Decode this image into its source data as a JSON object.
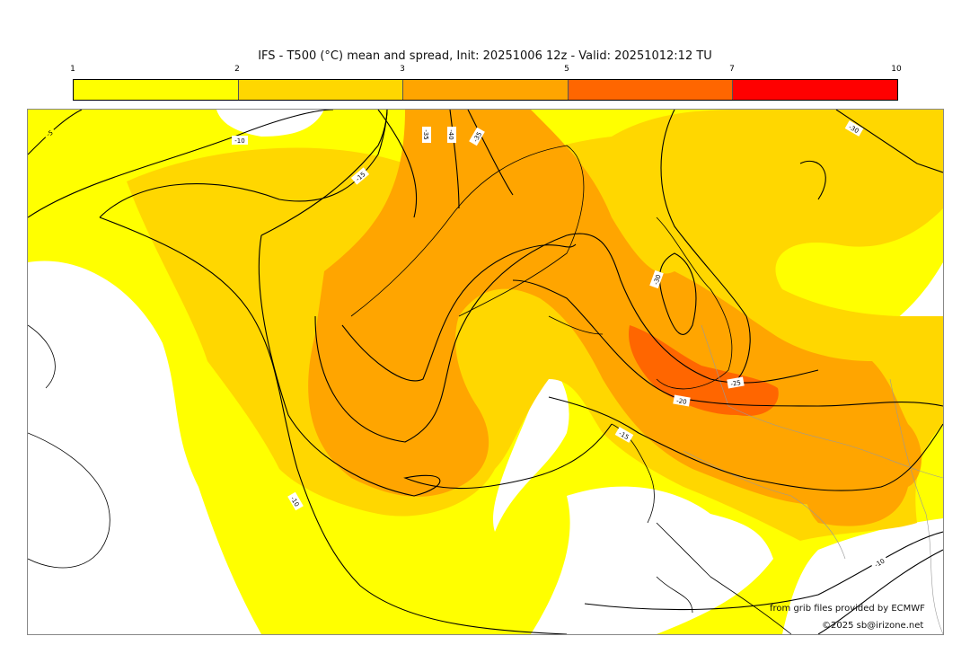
{
  "title": "IFS - T500 (°C) mean and spread, Init: 20251006 12z - Valid: 20251012:12 TU",
  "colorbar": {
    "ticks": [
      "1",
      "2",
      "3",
      "5",
      "7",
      "10"
    ],
    "colors": [
      "#ffff00",
      "#ffd700",
      "#ffa500",
      "#ff6600",
      "#ff0000"
    ]
  },
  "contour_labels": {
    "l1": "-10",
    "l2": "-15",
    "l3": "-35",
    "l4": "-40",
    "l5": "-35",
    "l6": "-30",
    "l7": "-25",
    "l8": "-20",
    "l9": "-15",
    "l10": "-10",
    "l11": "-30",
    "l12": "-10",
    "l13": "-5"
  },
  "credits": {
    "source": "from grib files provided by ECMWF",
    "copyright": "©2025 sb@irizone.net"
  }
}
